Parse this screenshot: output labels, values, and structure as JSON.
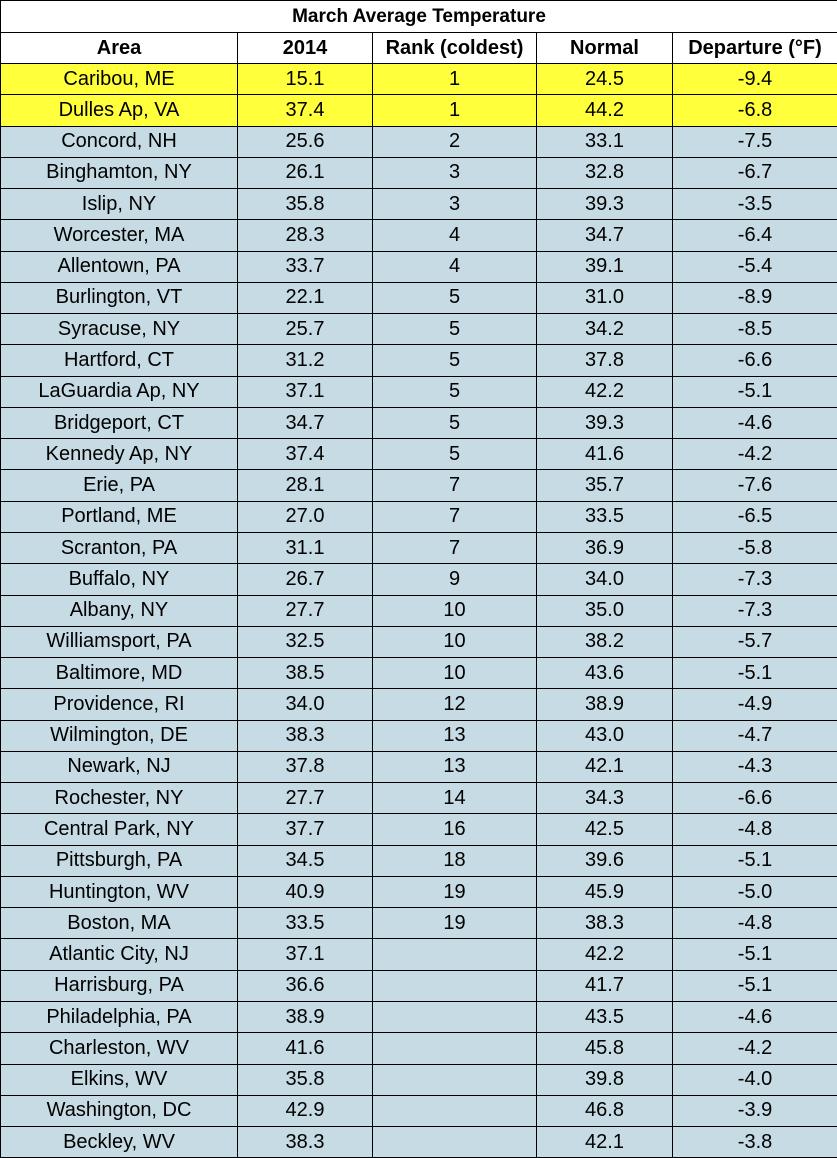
{
  "table": {
    "title": "March Average Temperature",
    "columns": [
      "Area",
      "2014",
      "Rank (coldest)",
      "Normal",
      "Departure (°F)"
    ],
    "rows": [
      [
        "Caribou, ME",
        "15.1",
        "1",
        "24.5",
        "-9.4"
      ],
      [
        "Dulles Ap, VA",
        "37.4",
        "1",
        "44.2",
        "-6.8"
      ],
      [
        "Concord, NH",
        "25.6",
        "2",
        "33.1",
        "-7.5"
      ],
      [
        "Binghamton, NY",
        "26.1",
        "3",
        "32.8",
        "-6.7"
      ],
      [
        "Islip, NY",
        "35.8",
        "3",
        "39.3",
        "-3.5"
      ],
      [
        "Worcester, MA",
        "28.3",
        "4",
        "34.7",
        "-6.4"
      ],
      [
        "Allentown, PA",
        "33.7",
        "4",
        "39.1",
        "-5.4"
      ],
      [
        "Burlington, VT",
        "22.1",
        "5",
        "31.0",
        "-8.9"
      ],
      [
        "Syracuse, NY",
        "25.7",
        "5",
        "34.2",
        "-8.5"
      ],
      [
        "Hartford, CT",
        "31.2",
        "5",
        "37.8",
        "-6.6"
      ],
      [
        "LaGuardia Ap, NY",
        "37.1",
        "5",
        "42.2",
        "-5.1"
      ],
      [
        "Bridgeport, CT",
        "34.7",
        "5",
        "39.3",
        "-4.6"
      ],
      [
        "Kennedy Ap, NY",
        "37.4",
        "5",
        "41.6",
        "-4.2"
      ],
      [
        "Erie, PA",
        "28.1",
        "7",
        "35.7",
        "-7.6"
      ],
      [
        "Portland, ME",
        "27.0",
        "7",
        "33.5",
        "-6.5"
      ],
      [
        "Scranton, PA",
        "31.1",
        "7",
        "36.9",
        "-5.8"
      ],
      [
        "Buffalo, NY",
        "26.7",
        "9",
        "34.0",
        "-7.3"
      ],
      [
        "Albany, NY",
        "27.7",
        "10",
        "35.0",
        "-7.3"
      ],
      [
        "Williamsport, PA",
        "32.5",
        "10",
        "38.2",
        "-5.7"
      ],
      [
        "Baltimore, MD",
        "38.5",
        "10",
        "43.6",
        "-5.1"
      ],
      [
        "Providence, RI",
        "34.0",
        "12",
        "38.9",
        "-4.9"
      ],
      [
        "Wilmington, DE",
        "38.3",
        "13",
        "43.0",
        "-4.7"
      ],
      [
        "Newark, NJ",
        "37.8",
        "13",
        "42.1",
        "-4.3"
      ],
      [
        "Rochester, NY",
        "27.7",
        "14",
        "34.3",
        "-6.6"
      ],
      [
        "Central Park, NY",
        "37.7",
        "16",
        "42.5",
        "-4.8"
      ],
      [
        "Pittsburgh, PA",
        "34.5",
        "18",
        "39.6",
        "-5.1"
      ],
      [
        "Huntington, WV",
        "40.9",
        "19",
        "45.9",
        "-5.0"
      ],
      [
        "Boston, MA",
        "33.5",
        "19",
        "38.3",
        "-4.8"
      ],
      [
        "Atlantic City, NJ",
        "37.1",
        null,
        "42.2",
        "-5.1"
      ],
      [
        "Harrisburg, PA",
        "36.6",
        null,
        "41.7",
        "-5.1"
      ],
      [
        "Philadelphia, PA",
        "38.9",
        null,
        "43.5",
        "-4.6"
      ],
      [
        "Charleston, WV",
        "41.6",
        null,
        "45.8",
        "-4.2"
      ],
      [
        "Elkins, WV",
        "35.8",
        null,
        "39.8",
        "-4.0"
      ],
      [
        "Washington, DC",
        "42.9",
        null,
        "46.8",
        "-3.9"
      ],
      [
        "Beckley, WV",
        "38.3",
        null,
        "42.1",
        "-3.8"
      ]
    ]
  }
}
